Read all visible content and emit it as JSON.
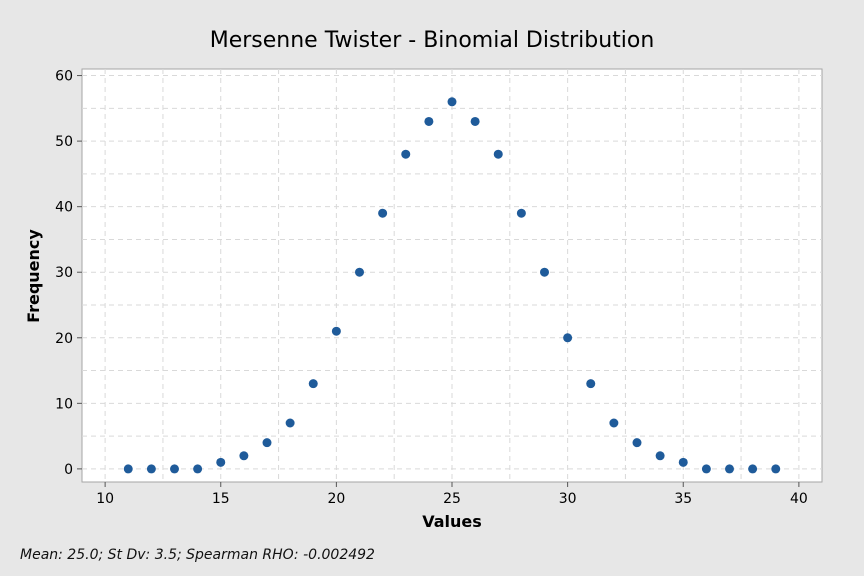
{
  "chart_data": {
    "type": "scatter",
    "title": "Mersenne Twister - Binomial Distribution",
    "xlabel": "Values",
    "ylabel": "Frequency",
    "xlim": [
      9,
      41
    ],
    "ylim": [
      -2,
      61
    ],
    "xticks": [
      10,
      15,
      20,
      25,
      30,
      35,
      40
    ],
    "yticks": [
      0,
      10,
      20,
      30,
      40,
      50,
      60
    ],
    "grid": true,
    "marker_color": "#1f5b9a",
    "x": [
      11,
      12,
      13,
      14,
      15,
      16,
      17,
      18,
      19,
      20,
      21,
      22,
      23,
      24,
      25,
      26,
      27,
      28,
      29,
      30,
      31,
      32,
      33,
      34,
      35,
      36,
      37,
      38,
      39
    ],
    "values": [
      0,
      0,
      0,
      0,
      1,
      2,
      4,
      7,
      13,
      21,
      30,
      39,
      48,
      53,
      56,
      53,
      48,
      39,
      30,
      20,
      13,
      7,
      4,
      2,
      1,
      0,
      0,
      0,
      0
    ]
  },
  "footnote": "Mean: 25.0; St Dv: 3.5; Spearman RHO: -0.002492"
}
